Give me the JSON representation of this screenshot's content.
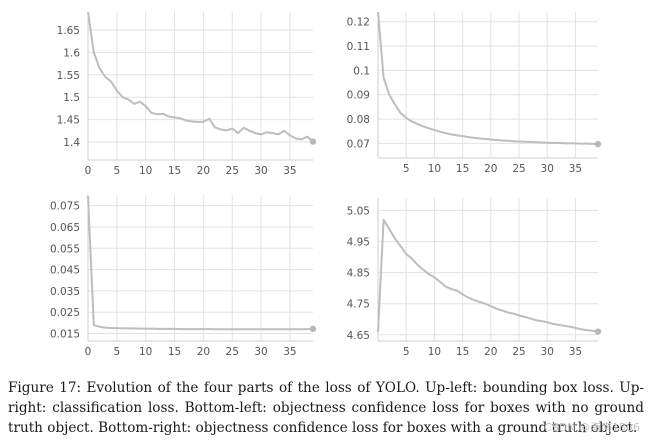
{
  "chart_data": [
    {
      "type": "line",
      "title": "",
      "xlabel": "",
      "ylabel": "",
      "xlim": [
        0,
        39
      ],
      "ylim": [
        1.36,
        1.69
      ],
      "xticks": [
        0,
        5,
        10,
        15,
        20,
        25,
        30,
        35
      ],
      "yticks": [
        1.4,
        1.45,
        1.5,
        1.55,
        1.6,
        1.65
      ],
      "ytick_labels": [
        "1.4",
        "1.45",
        "1.5",
        "1.55",
        "1.6",
        "1.65"
      ],
      "grid": true,
      "line_color": "#bdbdbd",
      "series": [
        {
          "x": [
            0,
            1,
            2,
            3,
            4,
            5,
            6,
            7,
            8,
            9,
            10,
            11,
            12,
            13,
            14,
            15,
            16,
            17,
            18,
            19,
            20,
            21,
            22,
            23,
            24,
            25,
            26,
            27,
            28,
            29,
            30,
            31,
            32,
            33,
            34,
            35,
            36,
            37,
            38,
            39
          ],
          "values": [
            1.69,
            1.6,
            1.565,
            1.545,
            1.535,
            1.515,
            1.5,
            1.495,
            1.485,
            1.49,
            1.48,
            1.465,
            1.462,
            1.463,
            1.457,
            1.455,
            1.453,
            1.448,
            1.446,
            1.445,
            1.445,
            1.452,
            1.433,
            1.428,
            1.426,
            1.43,
            1.42,
            1.432,
            1.425,
            1.42,
            1.417,
            1.422,
            1.42,
            1.417,
            1.425,
            1.415,
            1.408,
            1.406,
            1.412,
            1.401
          ]
        }
      ]
    },
    {
      "type": "line",
      "title": "",
      "xlabel": "",
      "ylabel": "",
      "xlim": [
        0,
        39
      ],
      "ylim": [
        0.064,
        0.124
      ],
      "xticks": [
        5,
        10,
        15,
        20,
        25,
        30,
        35
      ],
      "yticks": [
        0.07,
        0.08,
        0.09,
        0.1,
        0.11,
        0.12
      ],
      "ytick_labels": [
        "0.07",
        "0.08",
        "0.09",
        "0.1",
        "0.11",
        "0.12"
      ],
      "grid": true,
      "line_color": "#bdbdbd",
      "series": [
        {
          "x": [
            0,
            1,
            2,
            3,
            4,
            5,
            6,
            7,
            8,
            9,
            10,
            11,
            12,
            13,
            14,
            15,
            16,
            17,
            18,
            19,
            20,
            21,
            22,
            23,
            24,
            25,
            26,
            27,
            28,
            29,
            30,
            31,
            32,
            33,
            34,
            35,
            36,
            37,
            38,
            39
          ],
          "values": [
            0.124,
            0.097,
            0.09,
            0.086,
            0.0825,
            0.0805,
            0.079,
            0.078,
            0.077,
            0.0762,
            0.0755,
            0.0748,
            0.0742,
            0.0737,
            0.0733,
            0.073,
            0.0726,
            0.0723,
            0.072,
            0.0718,
            0.0716,
            0.0714,
            0.0712,
            0.0711,
            0.0709,
            0.0708,
            0.0707,
            0.0706,
            0.0705,
            0.0704,
            0.0703,
            0.0702,
            0.0702,
            0.0701,
            0.07,
            0.07,
            0.0699,
            0.0699,
            0.0698,
            0.0697
          ]
        }
      ]
    },
    {
      "type": "line",
      "title": "",
      "xlabel": "",
      "ylabel": "",
      "xlim": [
        0,
        39
      ],
      "ylim": [
        0.0115,
        0.08
      ],
      "xticks": [
        0,
        5,
        10,
        15,
        20,
        25,
        30,
        35
      ],
      "yticks": [
        0.015,
        0.025,
        0.035,
        0.045,
        0.055,
        0.065,
        0.075
      ],
      "ytick_labels": [
        "0.015",
        "0.025",
        "0.035",
        "0.045",
        "0.055",
        "0.065",
        "0.075"
      ],
      "grid": true,
      "line_color": "#bdbdbd",
      "series": [
        {
          "x": [
            0,
            1,
            2,
            3,
            4,
            5,
            6,
            7,
            8,
            9,
            10,
            11,
            12,
            13,
            14,
            15,
            16,
            17,
            18,
            19,
            20,
            21,
            22,
            23,
            24,
            25,
            26,
            27,
            28,
            29,
            30,
            31,
            32,
            33,
            34,
            35,
            36,
            37,
            38,
            39
          ],
          "values": [
            0.0795,
            0.019,
            0.0182,
            0.0178,
            0.0176,
            0.0175,
            0.0175,
            0.0174,
            0.0174,
            0.0173,
            0.0173,
            0.0173,
            0.0172,
            0.0172,
            0.0172,
            0.0172,
            0.0171,
            0.0171,
            0.0171,
            0.0171,
            0.0171,
            0.0171,
            0.017,
            0.017,
            0.017,
            0.017,
            0.017,
            0.017,
            0.017,
            0.017,
            0.017,
            0.017,
            0.017,
            0.017,
            0.017,
            0.017,
            0.017,
            0.017,
            0.0171,
            0.0172
          ]
        }
      ]
    },
    {
      "type": "line",
      "title": "",
      "xlabel": "",
      "ylabel": "",
      "xlim": [
        0,
        39
      ],
      "ylim": [
        4.63,
        5.09
      ],
      "xticks": [
        5,
        10,
        15,
        20,
        25,
        30,
        35
      ],
      "yticks": [
        4.65,
        4.75,
        4.85,
        4.95,
        5.05
      ],
      "ytick_labels": [
        "4.65",
        "4.75",
        "4.85",
        "4.95",
        "5.05"
      ],
      "grid": true,
      "line_color": "#bdbdbd",
      "series": [
        {
          "x": [
            0,
            1,
            2,
            3,
            4,
            5,
            6,
            7,
            8,
            9,
            10,
            11,
            12,
            13,
            14,
            15,
            16,
            17,
            18,
            19,
            20,
            21,
            22,
            23,
            24,
            25,
            26,
            27,
            28,
            29,
            30,
            31,
            32,
            33,
            34,
            35,
            36,
            37,
            38,
            39
          ],
          "values": [
            4.66,
            5.02,
            4.99,
            4.96,
            4.935,
            4.91,
            4.895,
            4.875,
            4.86,
            4.845,
            4.835,
            4.82,
            4.805,
            4.797,
            4.792,
            4.78,
            4.77,
            4.762,
            4.756,
            4.75,
            4.742,
            4.734,
            4.728,
            4.722,
            4.718,
            4.712,
            4.708,
            4.702,
            4.697,
            4.694,
            4.69,
            4.685,
            4.682,
            4.679,
            4.676,
            4.672,
            4.668,
            4.665,
            4.663,
            4.66
          ]
        }
      ]
    }
  ],
  "caption": "Figure 17: Evolution of the four parts of the loss of YOLO. Up-left: bounding box loss. Up-right: classification loss. Bottom-left: objectness confidence loss for boxes with no ground truth object. Bottom-right: objectness confidence loss for boxes with a ground truth object.",
  "watermark": "CSDN @海南1506"
}
